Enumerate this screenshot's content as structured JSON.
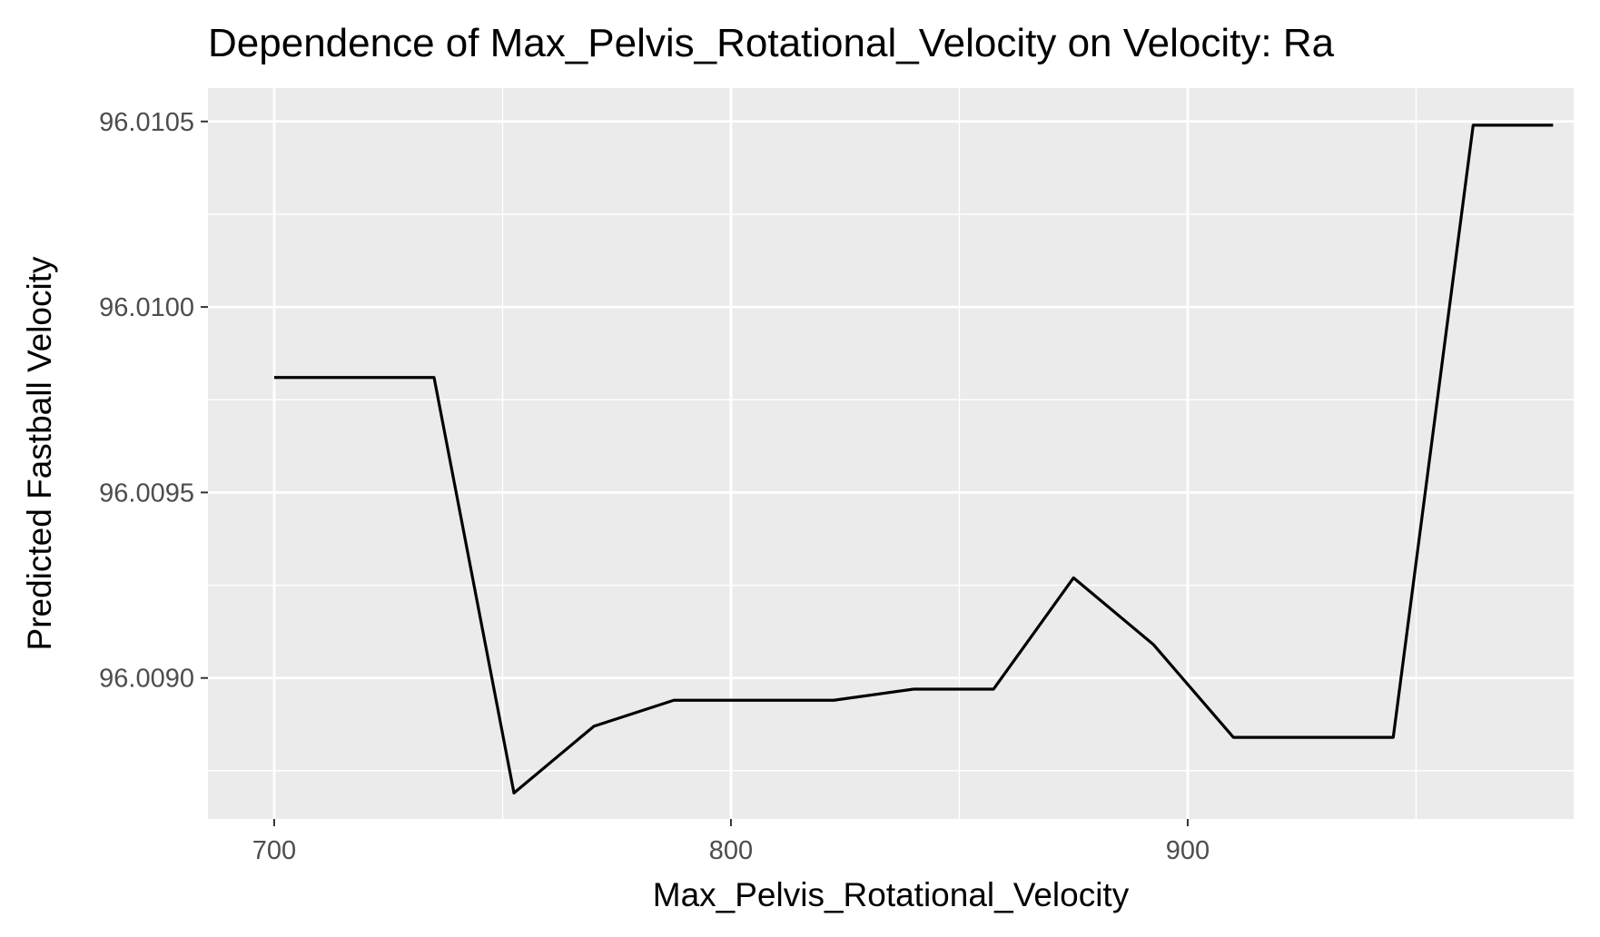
{
  "chart_data": {
    "type": "line",
    "title": "Dependence of Max_Pelvis_Rotational_Velocity on Velocity: Ra",
    "xlabel": "Max_Pelvis_Rotational_Velocity",
    "ylabel": "Predicted Fastball Velocity",
    "xlim": [
      685.5,
      984.5
    ],
    "ylim": [
      96.00862,
      96.01059
    ],
    "x_ticks": [
      700,
      800,
      900
    ],
    "x_tick_labels": [
      "700",
      "800",
      "900"
    ],
    "y_ticks": [
      96.009,
      96.0095,
      96.01,
      96.0105
    ],
    "y_tick_labels": [
      "96.0090",
      "96.0095",
      "96.0100",
      "96.0105"
    ],
    "grid": true,
    "background": "#ebebeb",
    "line_color": "#000000",
    "series": [
      {
        "x": [
          700,
          735,
          752.5,
          770,
          787.5,
          805,
          822.5,
          840,
          857.5,
          875,
          892.5,
          910,
          927.5,
          945,
          962.5,
          980
        ],
        "y": [
          96.00981,
          96.00981,
          96.00869,
          96.00887,
          96.00894,
          96.00894,
          96.00894,
          96.00897,
          96.00897,
          96.00927,
          96.00909,
          96.00884,
          96.00884,
          96.00884,
          96.01049,
          96.01049
        ]
      }
    ]
  }
}
